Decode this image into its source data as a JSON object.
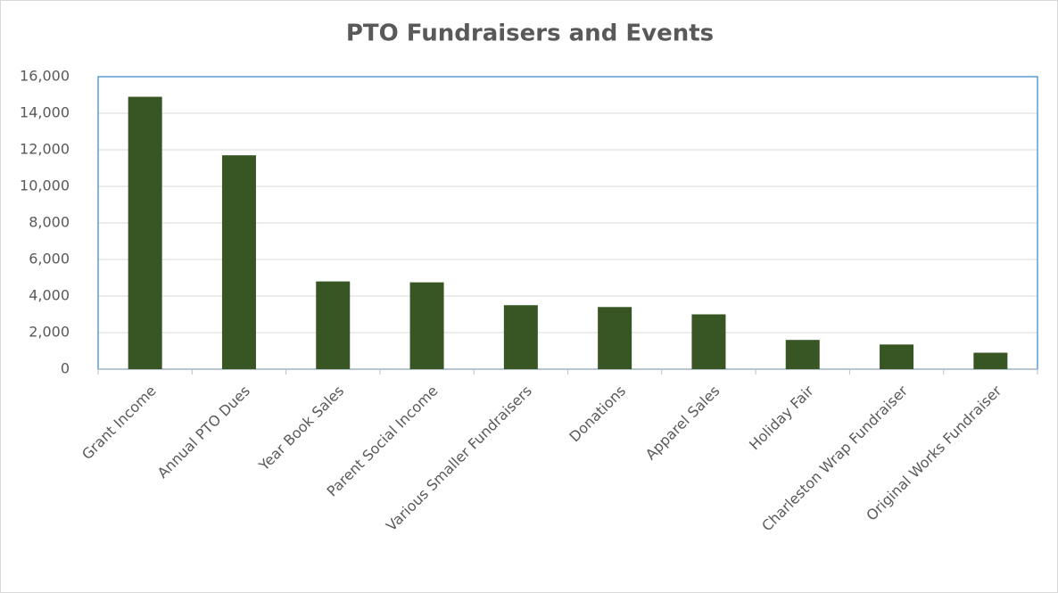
{
  "chart_data": {
    "type": "bar",
    "title": "PTO Fundraisers and Events",
    "categories": [
      "Grant Income",
      "Annual PTO Dues",
      "Year Book Sales",
      "Parent Social Income",
      "Various Smaller Fundraisers",
      "Donations",
      "Apparel Sales",
      "Holiday Fair",
      "Charleston Wrap Fundraiser",
      "Original Works Fundraiser"
    ],
    "values": [
      14900,
      11700,
      4800,
      4750,
      3500,
      3400,
      3000,
      1600,
      1350,
      900
    ],
    "color": "#375623",
    "ylim": [
      0,
      16000
    ],
    "yticks": [
      0,
      {
        "value": 2000,
        "label": "2,000"
      },
      {
        "value": 4000,
        "label": "4,000"
      },
      {
        "value": 6000,
        "label": "6,000"
      },
      {
        "value": 8000,
        "label": "8,000"
      },
      {
        "value": 10000,
        "label": "10,000"
      },
      {
        "value": 12000,
        "label": "12,000"
      },
      {
        "value": 14000,
        "label": "14,000"
      },
      {
        "value": 16000,
        "label": "16,000"
      }
    ],
    "grid": true
  }
}
